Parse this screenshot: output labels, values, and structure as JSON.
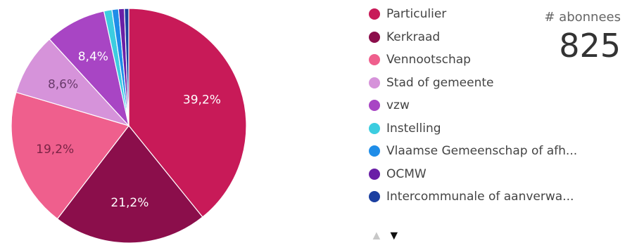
{
  "chart_data": {
    "type": "pie",
    "slices": [
      {
        "label": "Particulier",
        "value": 39.2,
        "display": "39,2%",
        "color": "#c81a58",
        "label_color": "#ffffff"
      },
      {
        "label": "Kerkraad",
        "value": 21.2,
        "display": "21,2%",
        "color": "#8b0e4b",
        "label_color": "#ffffff"
      },
      {
        "label": "Vennootschap",
        "value": 19.2,
        "display": "19,2%",
        "color": "#ef5f8d",
        "label_color": "#7a2345"
      },
      {
        "label": "Stad of gemeente",
        "value": 8.6,
        "display": "8,6%",
        "color": "#d693da",
        "label_color": "#6a3a6c"
      },
      {
        "label": "vzw",
        "value": 8.4,
        "display": "8,4%",
        "color": "#a845c4",
        "label_color": "#ffffff"
      },
      {
        "label": "Instelling",
        "value": 1.1,
        "display": "",
        "color": "#3ccde0",
        "label_color": "#ffffff"
      },
      {
        "label": "Vlaamse Gemeenschap of afh...",
        "value": 0.9,
        "display": "",
        "color": "#1f8de8",
        "label_color": "#ffffff"
      },
      {
        "label": "OCMW",
        "value": 0.8,
        "display": "",
        "color": "#6a1fa6",
        "label_color": "#ffffff"
      },
      {
        "label": "Intercommunale of aanverwa...",
        "value": 0.6,
        "display": "",
        "color": "#1b3fa0",
        "label_color": "#ffffff"
      }
    ],
    "legend_position": "right"
  },
  "kpi": {
    "label": "# abonnees",
    "value": "825"
  },
  "pager": {
    "up_icon": "triangle-up-icon",
    "down_icon": "triangle-down-icon",
    "up_glyph": "▲",
    "down_glyph": "▼"
  }
}
